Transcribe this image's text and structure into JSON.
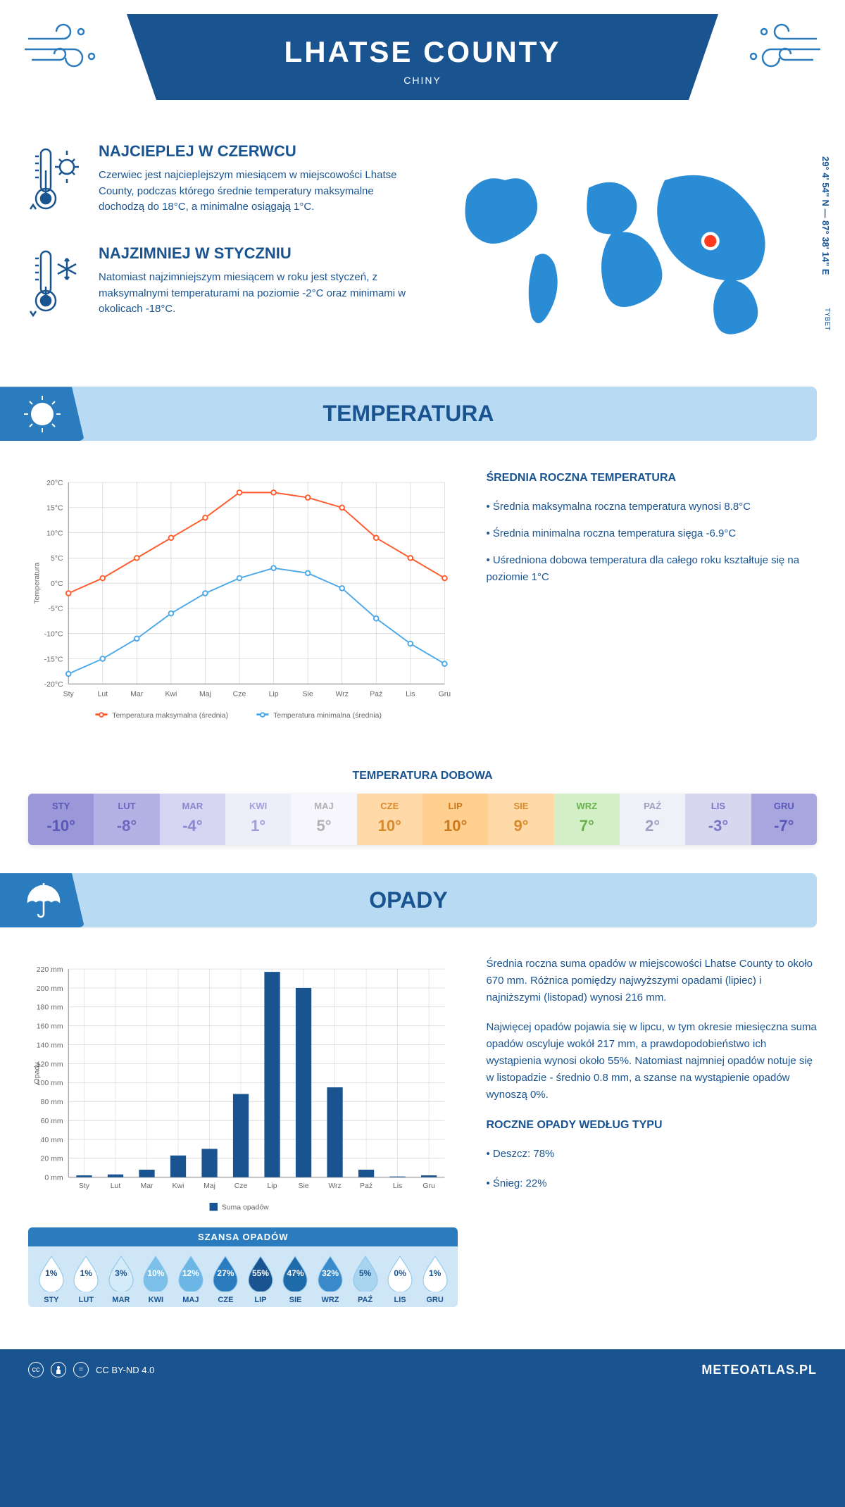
{
  "header": {
    "title": "LHATSE COUNTY",
    "country": "CHINY"
  },
  "coords": "29° 4' 54\" N — 87° 38' 14\" E",
  "region_label": "TYBET",
  "warmest": {
    "title": "NAJCIEPLEJ W CZERWCU",
    "text": "Czerwiec jest najcieplejszym miesiącem w miejscowości Lhatse County, podczas którego średnie temperatury maksymalne dochodzą do 18°C, a minimalne osiągają 1°C."
  },
  "coldest": {
    "title": "NAJZIMNIEJ W STYCZNIU",
    "text": "Natomiast najzimniejszym miesiącem w roku jest styczeń, z maksymalnymi temperaturami na poziomie -2°C oraz minimami w okolicach -18°C."
  },
  "temp_section": {
    "header": "TEMPERATURA",
    "chart": {
      "months": [
        "Sty",
        "Lut",
        "Mar",
        "Kwi",
        "Maj",
        "Cze",
        "Lip",
        "Sie",
        "Wrz",
        "Paź",
        "Lis",
        "Gru"
      ],
      "max_series": [
        -2,
        1,
        5,
        9,
        13,
        18,
        18,
        17,
        15,
        9,
        5,
        1
      ],
      "min_series": [
        -18,
        -15,
        -11,
        -6,
        -2,
        1,
        3,
        2,
        -1,
        -7,
        -12,
        -16
      ],
      "max_color": "#ff5a2c",
      "min_color": "#4aa8e8",
      "ylabel": "Temperatura",
      "yticks": [
        -20,
        -15,
        -10,
        -5,
        0,
        5,
        10,
        15,
        20
      ],
      "ytick_labels": [
        "-20°C",
        "-15°C",
        "-10°C",
        "-5°C",
        "0°C",
        "5°C",
        "10°C",
        "15°C",
        "20°C"
      ],
      "legend_max": "Temperatura maksymalna (średnia)",
      "legend_min": "Temperatura minimalna (średnia)",
      "grid_color": "#d0d0d0",
      "axis_color": "#888"
    },
    "side_title": "ŚREDNIA ROCZNA TEMPERATURA",
    "side_bullets": [
      "• Średnia maksymalna roczna temperatura wynosi 8.8°C",
      "• Średnia minimalna roczna temperatura sięga -6.9°C",
      "• Uśredniona dobowa temperatura dla całego roku kształtuje się na poziomie 1°C"
    ],
    "daily_title": "TEMPERATURA DOBOWA",
    "daily": {
      "months": [
        "STY",
        "LUT",
        "MAR",
        "KWI",
        "MAJ",
        "CZE",
        "LIP",
        "SIE",
        "WRZ",
        "PAŹ",
        "LIS",
        "GRU"
      ],
      "values": [
        "-10°",
        "-8°",
        "-4°",
        "1°",
        "5°",
        "10°",
        "10°",
        "9°",
        "7°",
        "2°",
        "-3°",
        "-7°"
      ],
      "bg_colors": [
        "#9a98d8",
        "#b4b2e4",
        "#d6d5f2",
        "#eeedfa",
        "#f7f6fc",
        "#ffd9a8",
        "#ffcf90",
        "#ffd9a8",
        "#d3efc8",
        "#f0f0f8",
        "#d8d7f0",
        "#a8a6de"
      ],
      "text_colors": [
        "#5a57b8",
        "#6a68c0",
        "#8a88d0",
        "#a09edd",
        "#b0b0b0",
        "#d68a2c",
        "#cc7a1c",
        "#d68a2c",
        "#6ab04c",
        "#a0a0c0",
        "#7876c8",
        "#5a57b8"
      ]
    }
  },
  "precip_section": {
    "header": "OPADY",
    "chart": {
      "months": [
        "Sty",
        "Lut",
        "Mar",
        "Kwi",
        "Maj",
        "Cze",
        "Lip",
        "Sie",
        "Wrz",
        "Paź",
        "Lis",
        "Gru"
      ],
      "values": [
        2,
        3,
        8,
        23,
        30,
        88,
        217,
        200,
        95,
        8,
        0.8,
        2
      ],
      "bar_color": "#1a5490",
      "ylabel": "Opady",
      "ymax": 220,
      "ystep": 20,
      "grid_color": "#d0d0d0",
      "legend": "Suma opadów"
    },
    "side_paragraphs": [
      "Średnia roczna suma opadów w miejscowości Lhatse County to około 670 mm. Różnica pomiędzy najwyższymi opadami (lipiec) i najniższymi (listopad) wynosi 216 mm.",
      "Najwięcej opadów pojawia się w lipcu, w tym okresie miesięczna suma opadów oscyluje wokół 217 mm, a prawdopodobieństwo ich wystąpienia wynosi około 55%. Natomiast najmniej opadów notuje się w listopadzie - średnio 0.8 mm, a szanse na wystąpienie opadów wynoszą 0%."
    ],
    "chance_title": "SZANSA OPADÓW",
    "chance": {
      "months": [
        "STY",
        "LUT",
        "MAR",
        "KWI",
        "MAJ",
        "CZE",
        "LIP",
        "SIE",
        "WRZ",
        "PAŹ",
        "LIS",
        "GRU"
      ],
      "pct": [
        "1%",
        "1%",
        "3%",
        "10%",
        "12%",
        "27%",
        "55%",
        "47%",
        "32%",
        "5%",
        "0%",
        "1%"
      ],
      "drop_colors": [
        "#ffffff",
        "#ffffff",
        "#d4ebf9",
        "#7cc0ea",
        "#6cb6e6",
        "#2b7cbf",
        "#1a5490",
        "#1f6aa8",
        "#3a8acb",
        "#a8d4f0",
        "#ffffff",
        "#ffffff"
      ],
      "text_colors": [
        "#1a5490",
        "#1a5490",
        "#1a5490",
        "#ffffff",
        "#ffffff",
        "#ffffff",
        "#ffffff",
        "#ffffff",
        "#ffffff",
        "#1a5490",
        "#1a5490",
        "#1a5490"
      ]
    },
    "type_title": "ROCZNE OPADY WEDŁUG TYPU",
    "type_bullets": [
      "• Deszcz: 78%",
      "• Śnieg: 22%"
    ]
  },
  "footer": {
    "license": "CC BY-ND 4.0",
    "site": "METEOATLAS.PL"
  }
}
